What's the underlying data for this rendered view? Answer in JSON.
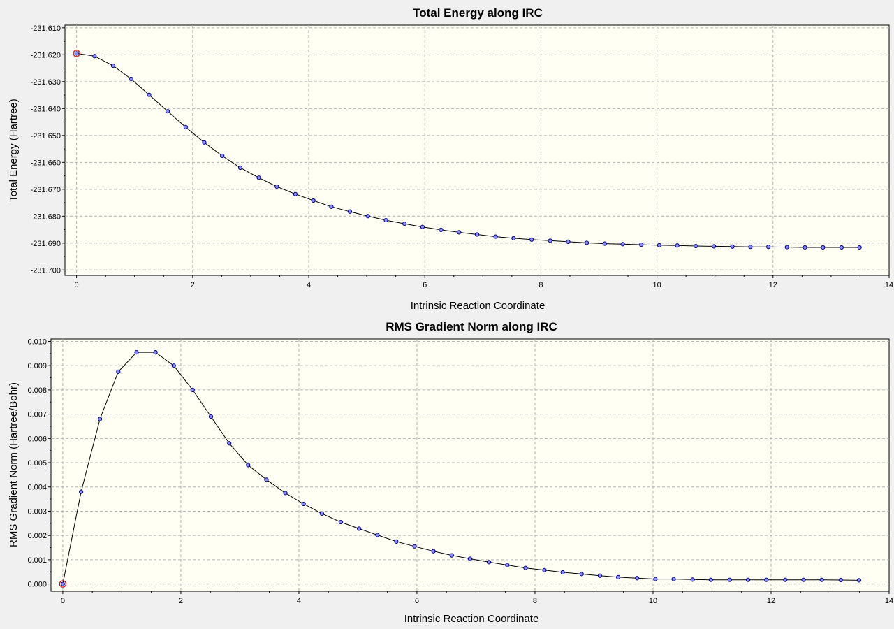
{
  "chart_data": [
    {
      "type": "line",
      "title": "Total Energy along IRC",
      "xlabel": "Intrinsic Reaction Coordinate",
      "ylabel": "Total Energy (Hartree)",
      "xlim": [
        -0.2,
        14
      ],
      "ylim": [
        -231.702,
        -231.609
      ],
      "xticks": [
        0,
        2,
        4,
        6,
        8,
        10,
        12,
        14
      ],
      "yticks": [
        -231.61,
        -231.62,
        -231.63,
        -231.64,
        -231.65,
        -231.66,
        -231.67,
        -231.68,
        -231.69,
        -231.7
      ],
      "ytick_decimals": 3,
      "grid": true,
      "highlight_index": 0,
      "x": [
        0,
        0.31,
        0.63,
        0.94,
        1.25,
        1.57,
        1.88,
        2.2,
        2.51,
        2.82,
        3.14,
        3.45,
        3.77,
        4.08,
        4.39,
        4.71,
        5.02,
        5.33,
        5.65,
        5.96,
        6.28,
        6.59,
        6.9,
        7.22,
        7.53,
        7.84,
        8.16,
        8.47,
        8.79,
        9.1,
        9.41,
        9.73,
        10.04,
        10.35,
        10.67,
        10.98,
        11.3,
        11.61,
        11.92,
        12.24,
        12.55,
        12.86,
        13.18,
        13.49
      ],
      "series": [
        {
          "values": [
            -231.6195,
            -231.6205,
            -231.6241,
            -231.629,
            -231.6349,
            -231.641,
            -231.6469,
            -231.6526,
            -231.6576,
            -231.662,
            -231.6657,
            -231.669,
            -231.6718,
            -231.6742,
            -231.6765,
            -231.6783,
            -231.68,
            -231.6815,
            -231.6828,
            -231.684,
            -231.6851,
            -231.686,
            -231.6868,
            -231.6876,
            -231.6882,
            -231.6887,
            -231.6891,
            -231.6895,
            -231.6899,
            -231.6902,
            -231.6904,
            -231.6906,
            -231.6908,
            -231.6909,
            -231.6911,
            -231.6912,
            -231.6913,
            -231.6914,
            -231.6914,
            -231.6915,
            -231.6916,
            -231.6916,
            -231.6916,
            -231.6916
          ]
        }
      ]
    },
    {
      "type": "line",
      "title": "RMS Gradient Norm along IRC",
      "xlabel": "Intrinsic Reaction Coordinate",
      "ylabel": "RMS Gradient Norm (Hartree/Bohr)",
      "xlim": [
        -0.2,
        14
      ],
      "ylim": [
        -0.0003,
        0.0101
      ],
      "xticks": [
        0,
        2,
        4,
        6,
        8,
        10,
        12,
        14
      ],
      "yticks": [
        0.0,
        0.001,
        0.002,
        0.003,
        0.004,
        0.005,
        0.006,
        0.007,
        0.008,
        0.009,
        0.01
      ],
      "ytick_decimals": 3,
      "grid": true,
      "highlight_index": 0,
      "x": [
        0,
        0.31,
        0.63,
        0.94,
        1.25,
        1.57,
        1.88,
        2.2,
        2.51,
        2.82,
        3.14,
        3.45,
        3.77,
        4.08,
        4.39,
        4.71,
        5.02,
        5.33,
        5.65,
        5.96,
        6.28,
        6.59,
        6.9,
        7.22,
        7.53,
        7.84,
        8.16,
        8.47,
        8.79,
        9.1,
        9.41,
        9.73,
        10.04,
        10.35,
        10.67,
        10.98,
        11.3,
        11.61,
        11.92,
        12.24,
        12.55,
        12.86,
        13.18,
        13.49
      ],
      "series": [
        {
          "values": [
            0.0,
            0.0038,
            0.0068,
            0.00875,
            0.00955,
            0.00955,
            0.009,
            0.008,
            0.0069,
            0.0058,
            0.0049,
            0.0043,
            0.00375,
            0.0033,
            0.0029,
            0.00255,
            0.00228,
            0.00202,
            0.00175,
            0.00155,
            0.00135,
            0.00118,
            0.00104,
            0.0009,
            0.00078,
            0.00066,
            0.00057,
            0.00048,
            0.00041,
            0.00034,
            0.00028,
            0.00024,
            0.0002,
            0.0002,
            0.00018,
            0.00017,
            0.00017,
            0.00017,
            0.00017,
            0.00017,
            0.00017,
            0.00017,
            0.00016,
            0.00015
          ]
        }
      ]
    }
  ]
}
